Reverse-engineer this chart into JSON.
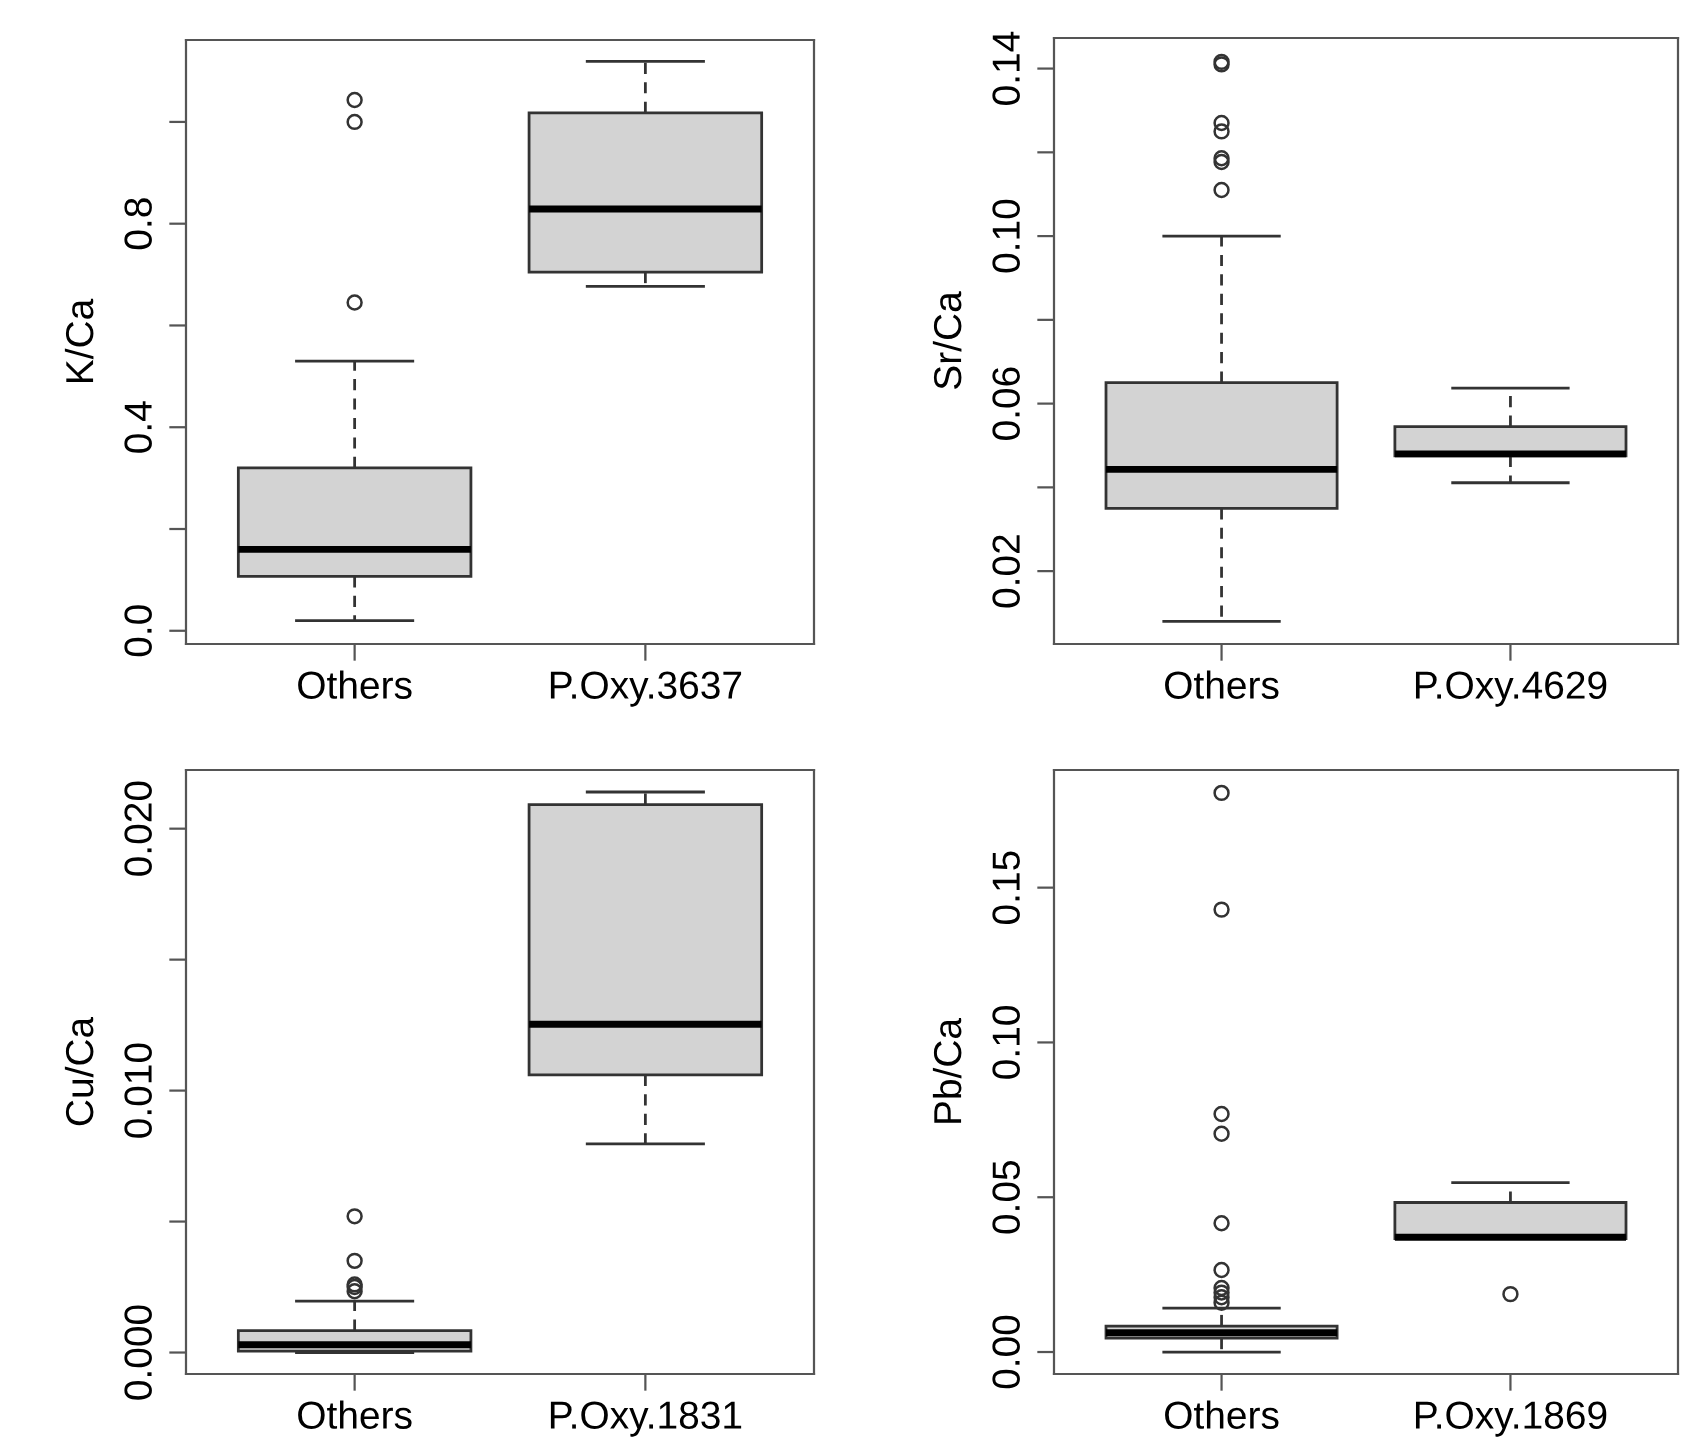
{
  "chart_data": [
    {
      "type": "box",
      "categories": [
        "Others",
        "P.Oxy.3637"
      ],
      "ylabel": "K/Ca",
      "ylim": [
        -0.026,
        1.161
      ],
      "yticks": [
        {
          "value": 0.0,
          "label": "0.0"
        },
        {
          "value": 0.2,
          "label": null
        },
        0.4,
        {
          "value": 0.6,
          "label": null
        },
        0.8,
        {
          "value": 1.0,
          "label": null
        }
      ],
      "color": "#d3d3d3",
      "boxes": [
        {
          "low": 0.02,
          "q1": 0.107,
          "median": 0.16,
          "q3": 0.32,
          "high": 0.53,
          "outliers": [
            0.645,
            1.0,
            1.043
          ]
        },
        {
          "low": 0.677,
          "q1": 0.705,
          "median": 0.829,
          "q3": 1.018,
          "high": 1.119
        }
      ]
    },
    {
      "type": "box",
      "categories": [
        "Others",
        "P.Oxy.4629"
      ],
      "ylabel": "Sr/Ca",
      "ylim": [
        0.0026,
        0.1473
      ],
      "yticks": [
        0.02,
        {
          "value": 0.04,
          "label": null
        },
        0.06,
        {
          "value": 0.08,
          "label": null
        },
        {
          "value": 0.1,
          "label": "0.10"
        },
        {
          "value": 0.12,
          "label": null
        },
        0.14
      ],
      "color": "#d3d3d3",
      "boxes": [
        {
          "low": 0.008,
          "q1": 0.035,
          "median": 0.0443,
          "q3": 0.065,
          "high": 0.1,
          "outliers": [
            0.111,
            0.1177,
            0.1186,
            0.125,
            0.127,
            0.141,
            0.1416
          ]
        },
        {
          "low": 0.0411,
          "q1": 0.0475,
          "median": 0.048,
          "q3": 0.0545,
          "high": 0.0637
        }
      ]
    },
    {
      "type": "box",
      "categories": [
        "Others",
        "P.Oxy.1831"
      ],
      "ylabel": "Cu/Ca",
      "ylim": [
        -0.00082,
        0.02224
      ],
      "yticks": [
        {
          "value": 0.0,
          "label": "0.000"
        },
        {
          "value": 0.005,
          "label": null
        },
        {
          "value": 0.01,
          "label": "0.010"
        },
        {
          "value": 0.015,
          "label": null
        },
        {
          "value": 0.02,
          "label": "0.020"
        }
      ],
      "color": "#d3d3d3",
      "boxes": [
        {
          "low": 0.0,
          "q1": 5e-05,
          "median": 0.0003,
          "q3": 0.00084,
          "high": 0.00196,
          "outliers": [
            0.00234,
            0.0025,
            0.0026,
            0.0035,
            0.0052
          ]
        },
        {
          "low": 0.00797,
          "q1": 0.0106,
          "median": 0.01253,
          "q3": 0.02092,
          "high": 0.0214
        }
      ]
    },
    {
      "type": "box",
      "categories": [
        "Others",
        "P.Oxy.1869"
      ],
      "ylabel": "Pb/Ca",
      "ylim": [
        -0.0071,
        0.188
      ],
      "yticks": [
        {
          "value": 0.0,
          "label": "0.00"
        },
        0.05,
        {
          "value": 0.1,
          "label": "0.10"
        },
        0.15
      ],
      "color": "#d3d3d3",
      "boxes": [
        {
          "low": 0.0,
          "q1": 0.0045,
          "median": 0.0062,
          "q3": 0.0084,
          "high": 0.0142,
          "outliers": [
            0.0159,
            0.0177,
            0.0192,
            0.0207,
            0.0265,
            0.0416,
            0.0705,
            0.0769,
            0.1429,
            0.1806
          ]
        },
        {
          "low": 0.0366,
          "q1": 0.0366,
          "median": 0.0371,
          "q3": 0.0483,
          "high": 0.0547,
          "outliers": [
            0.0187
          ]
        }
      ]
    }
  ]
}
